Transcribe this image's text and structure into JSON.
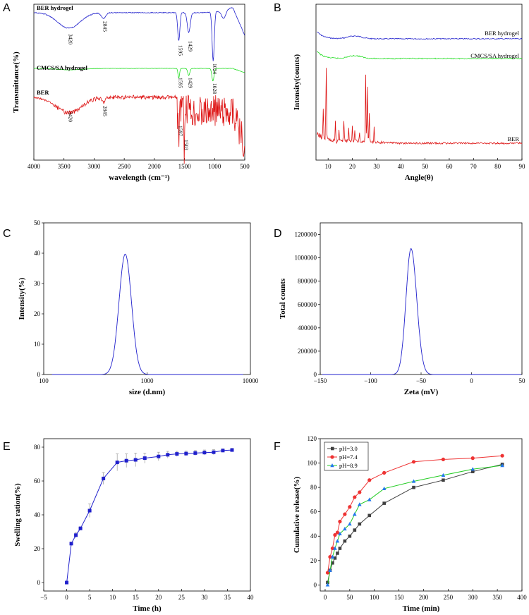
{
  "panels": {
    "A": {
      "label": "A"
    },
    "B": {
      "label": "B"
    },
    "C": {
      "label": "C"
    },
    "D": {
      "label": "D"
    },
    "E": {
      "label": "E"
    },
    "F": {
      "label": "F"
    }
  },
  "colors": {
    "blue": "#2020cc",
    "green": "#22dd22",
    "red": "#dd1111",
    "black": "#000000"
  },
  "chart_data": [
    {
      "id": "A",
      "type": "line",
      "title": "",
      "xlabel": "wavelength (cm⁻¹)",
      "ylabel": "Transmittance(%)",
      "xlim": [
        4000,
        500
      ],
      "xticks": [
        "4000",
        "3500",
        "3000",
        "2500",
        "2000",
        "1500",
        "1000",
        "500"
      ],
      "series": [
        {
          "name": "BER hydrogel",
          "color": "#2020cc",
          "peaks": [
            "3420",
            "2845",
            "1595",
            "1429",
            "1024"
          ]
        },
        {
          "name": "CMCS/SA hydrogel",
          "color": "#22dd22",
          "peaks": [
            "1595",
            "1429",
            "1028"
          ]
        },
        {
          "name": "BER",
          "color": "#dd1111",
          "peaks": [
            "3420",
            "2845",
            "1597",
            "1503"
          ]
        }
      ]
    },
    {
      "id": "B",
      "type": "line",
      "xlabel": "Angle(θ)",
      "ylabel": "Intensity(counts)",
      "xlim": [
        5,
        90
      ],
      "xticks": [
        "10",
        "20",
        "30",
        "40",
        "50",
        "60",
        "70",
        "80",
        "90"
      ],
      "series": [
        {
          "name": "BER hydrogel",
          "color": "#2020cc"
        },
        {
          "name": "CMCS/SA hydrogel",
          "color": "#22dd22"
        },
        {
          "name": "BER",
          "color": "#dd1111"
        }
      ]
    },
    {
      "id": "C",
      "type": "line",
      "xlabel": "size (d.nm)",
      "ylabel": "Intensity(%)",
      "xscale": "log",
      "xlim": [
        100,
        10000
      ],
      "ylim": [
        0,
        50
      ],
      "xticks": [
        "100",
        "1000",
        "10000"
      ],
      "yticks": [
        "0",
        "10",
        "20",
        "30",
        "40",
        "50"
      ],
      "peak": {
        "x": 615,
        "y": 39.7
      }
    },
    {
      "id": "D",
      "type": "line",
      "xlabel": "Zeta (mV)",
      "ylabel": "Total counts",
      "xlim": [
        -150,
        50
      ],
      "ylim": [
        0,
        1300000
      ],
      "xticks": [
        "−150",
        "−100",
        "−50",
        "0",
        "50"
      ],
      "yticks": [
        "0",
        "200000",
        "400000",
        "600000",
        "800000",
        "1000000",
        "1200000"
      ],
      "peak": {
        "x": -60,
        "y": 1080000
      }
    },
    {
      "id": "E",
      "type": "line",
      "xlabel": "Time (h)",
      "ylabel": "Swelling ration(%)",
      "xlim": [
        -5,
        40
      ],
      "ylim": [
        -5,
        85
      ],
      "xticks": [
        "−5",
        "0",
        "5",
        "10",
        "15",
        "20",
        "25",
        "30",
        "35",
        "40"
      ],
      "yticks": [
        "0",
        "20",
        "40",
        "60",
        "80"
      ],
      "x": [
        0,
        1,
        2,
        3,
        5,
        8,
        11,
        13,
        15,
        17,
        20,
        22,
        24,
        26,
        28,
        30,
        32,
        34,
        36
      ],
      "values": [
        0,
        23,
        28,
        32,
        42.5,
        61.5,
        71,
        72,
        72.5,
        73.5,
        74.5,
        75.5,
        76,
        76.2,
        76.5,
        76.8,
        77,
        78,
        78.3
      ],
      "errors": [
        0,
        1,
        1.5,
        1,
        4,
        3.5,
        5,
        4,
        4,
        3,
        2.5,
        2,
        1.5,
        1.5,
        1.5,
        1.5,
        1.5,
        1,
        1
      ],
      "color": "#2020cc"
    },
    {
      "id": "F",
      "type": "line",
      "xlabel": "Time (min)",
      "ylabel": "Cumulative release(%)",
      "xlim": [
        -10,
        400
      ],
      "ylim": [
        -5,
        120
      ],
      "xticks": [
        "0",
        "50",
        "100",
        "150",
        "200",
        "250",
        "300",
        "350",
        "400"
      ],
      "yticks": [
        "0",
        "20",
        "40",
        "60",
        "80",
        "100",
        "120"
      ],
      "legend": [
        "pH=3.0",
        "pH=7.4",
        "pH=8.9"
      ],
      "series": [
        {
          "name": "pH=3.0",
          "color": "#404040",
          "marker": "square",
          "x": [
            5,
            10,
            15,
            20,
            25,
            30,
            40,
            50,
            60,
            70,
            90,
            120,
            180,
            240,
            300,
            360
          ],
          "values": [
            2,
            12,
            18,
            22,
            26,
            30,
            36,
            40,
            45,
            50,
            57,
            67,
            80,
            86,
            93,
            99
          ]
        },
        {
          "name": "pH=7.4",
          "color": "#ee3333",
          "marker": "circle",
          "x": [
            5,
            10,
            15,
            20,
            25,
            30,
            40,
            50,
            60,
            70,
            90,
            120,
            180,
            240,
            300,
            360
          ],
          "values": [
            10,
            23,
            30,
            41,
            43,
            52,
            58,
            64,
            72,
            76,
            86,
            92,
            101,
            103,
            104,
            106
          ]
        },
        {
          "name": "pH=8.9",
          "color": "#22cc22",
          "marker": "triangle",
          "x": [
            5,
            10,
            15,
            20,
            25,
            30,
            40,
            50,
            60,
            70,
            90,
            120,
            180,
            240,
            300,
            360
          ],
          "values": [
            0,
            12,
            23,
            30,
            36,
            42,
            46,
            50,
            58,
            66,
            70,
            79,
            85,
            90,
            95,
            98
          ]
        }
      ]
    }
  ]
}
